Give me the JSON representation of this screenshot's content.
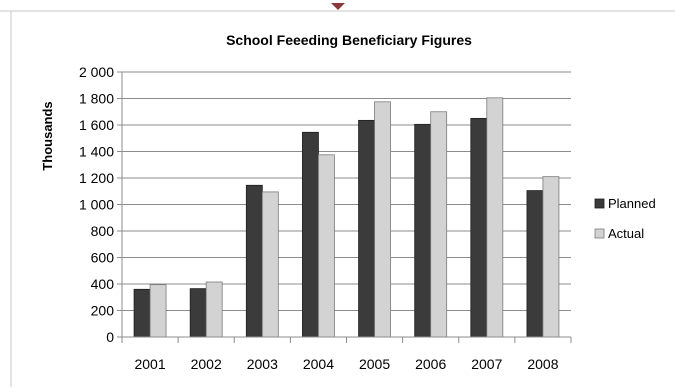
{
  "chart_data": {
    "type": "bar",
    "title": "School Feeeding Beneficiary Figures",
    "ylabel": "Thousands",
    "xlabel": "",
    "categories": [
      "2001",
      "2002",
      "2003",
      "2004",
      "2005",
      "2006",
      "2007",
      "2008"
    ],
    "series": [
      {
        "name": "Planned",
        "color": "#3b3b3b",
        "values": [
          360,
          365,
          1145,
          1545,
          1635,
          1605,
          1650,
          1105
        ]
      },
      {
        "name": "Actual",
        "color": "#d3d3d3",
        "values": [
          395,
          415,
          1095,
          1375,
          1775,
          1700,
          1805,
          1210
        ]
      }
    ],
    "ylim": [
      0,
      2000
    ],
    "yticks": [
      0,
      200,
      400,
      600,
      800,
      1000,
      1200,
      1400,
      1600,
      1800,
      2000
    ],
    "ytick_labels": [
      "0",
      "200",
      "400",
      "600",
      "800",
      "1 000",
      "1 200",
      "1 400",
      "1 600",
      "1 800",
      "2 000"
    ],
    "grid": "horizontal",
    "legend_position": "right"
  }
}
